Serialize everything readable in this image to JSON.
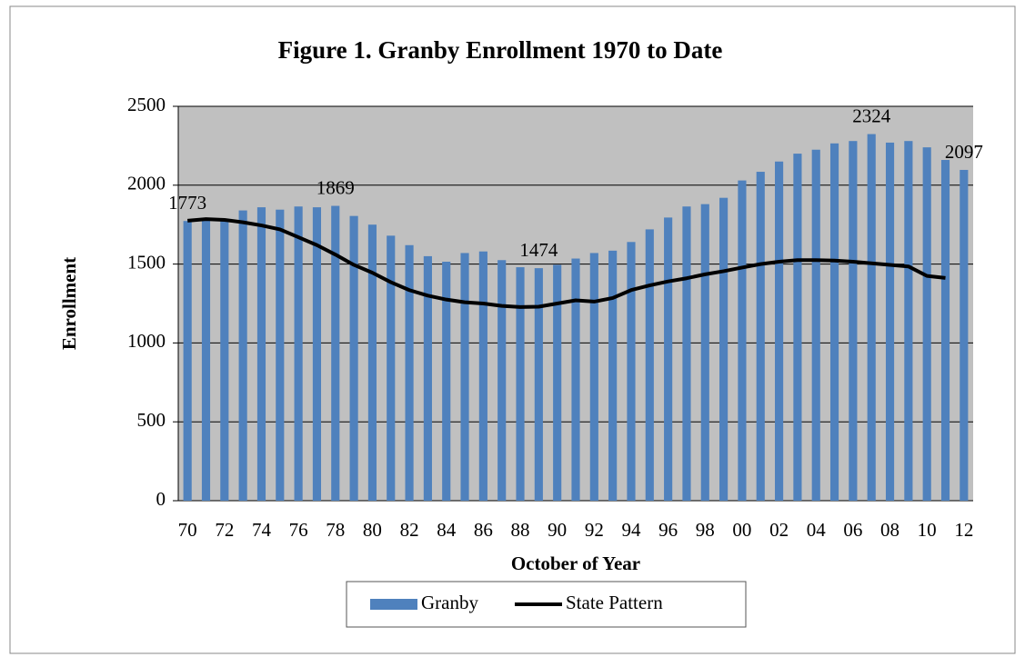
{
  "chart_data": {
    "type": "bar-line",
    "title": "Figure 1.  Granby Enrollment 1970 to Date",
    "x_label": "October of Year",
    "y_label": "Enrollment",
    "categories": [
      "70",
      null,
      "72",
      null,
      "74",
      null,
      "76",
      null,
      "78",
      null,
      "80",
      null,
      "82",
      null,
      "84",
      null,
      "86",
      null,
      "88",
      null,
      "90",
      null,
      "92",
      null,
      "94",
      null,
      "96",
      null,
      "98",
      null,
      "00",
      null,
      "02",
      null,
      "04",
      null,
      "06",
      null,
      "08",
      null,
      "10",
      null,
      "12"
    ],
    "series": [
      {
        "name": "Granby",
        "type": "bar",
        "color": "#4f81bd",
        "values": [
          1773,
          1780,
          1775,
          1840,
          1860,
          1845,
          1865,
          1860,
          1869,
          1805,
          1750,
          1680,
          1620,
          1550,
          1515,
          1570,
          1580,
          1525,
          1480,
          1474,
          1495,
          1535,
          1570,
          1585,
          1640,
          1720,
          1795,
          1865,
          1880,
          1920,
          2030,
          2085,
          2150,
          2200,
          2225,
          2265,
          2280,
          2324,
          2270,
          2280,
          2240,
          2160,
          2097
        ],
        "value_labels": [
          "1773",
          null,
          null,
          null,
          null,
          null,
          null,
          null,
          "1869",
          null,
          null,
          null,
          null,
          null,
          null,
          null,
          null,
          null,
          null,
          "1474",
          null,
          null,
          null,
          null,
          null,
          null,
          null,
          null,
          null,
          null,
          null,
          null,
          null,
          null,
          null,
          null,
          null,
          "2324",
          null,
          null,
          null,
          null,
          "2097"
        ]
      },
      {
        "name": "State Pattern",
        "type": "line",
        "color": "#000000",
        "values": [
          1775,
          1785,
          1780,
          1765,
          1745,
          1720,
          1670,
          1620,
          1560,
          1495,
          1445,
          1385,
          1335,
          1300,
          1275,
          1258,
          1250,
          1235,
          1228,
          1230,
          1250,
          1270,
          1262,
          1285,
          1335,
          1365,
          1390,
          1410,
          1435,
          1455,
          1478,
          1500,
          1515,
          1525,
          1525,
          1522,
          1515,
          1505,
          1495,
          1485,
          1425,
          1412,
          null
        ]
      }
    ],
    "ylim": [
      0,
      2500
    ],
    "yticks": [
      0,
      500,
      1000,
      1500,
      2000,
      2500
    ],
    "grid": true,
    "plot_background": "#c0c0c0",
    "legend": "bottom"
  }
}
